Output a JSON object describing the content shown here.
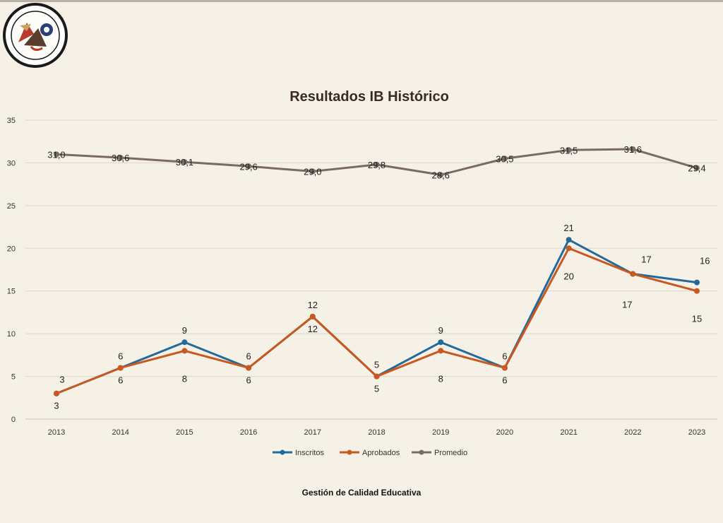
{
  "header": {
    "logo_icon": "school-crest-icon"
  },
  "footer": {
    "text": "Gestión de Calidad Educativa"
  },
  "chart_data": {
    "type": "line",
    "title": "Resultados IB Histórico",
    "xlabel": "",
    "ylabel": "",
    "categories": [
      "2013",
      "2014",
      "2015",
      "2016",
      "2017",
      "2018",
      "2019",
      "2020",
      "2021",
      "2022",
      "2023"
    ],
    "ylim": [
      0,
      35
    ],
    "yticks": [
      0,
      5,
      10,
      15,
      20,
      25,
      30,
      35
    ],
    "grid": true,
    "legend_position": "bottom",
    "series": [
      {
        "name": "Inscritos",
        "color": "#23699a",
        "values": [
          3,
          6,
          9,
          6,
          12,
          5,
          9,
          6,
          21,
          17,
          16
        ],
        "labels": [
          "3",
          "6",
          "9",
          "6",
          "12",
          "5",
          "9",
          "6",
          "21",
          "17",
          "16"
        ]
      },
      {
        "name": "Aprobados",
        "color": "#c8581f",
        "values": [
          3,
          6,
          8,
          6,
          12,
          5,
          8,
          6,
          20,
          17,
          15
        ],
        "labels": [
          "3",
          "6",
          "8",
          "6",
          "12",
          "5",
          "8",
          "6",
          "20",
          "17",
          "15"
        ]
      },
      {
        "name": "Promedio",
        "color": "#7a6a66",
        "values": [
          31.0,
          30.6,
          30.1,
          29.6,
          29.0,
          29.8,
          28.6,
          30.5,
          31.5,
          31.6,
          29.4
        ],
        "labels": [
          "31,0",
          "30,6",
          "30,1",
          "29,6",
          "29,0",
          "29,8",
          "28,6",
          "30,5",
          "31,5",
          "31,6",
          "29,4"
        ]
      }
    ]
  }
}
